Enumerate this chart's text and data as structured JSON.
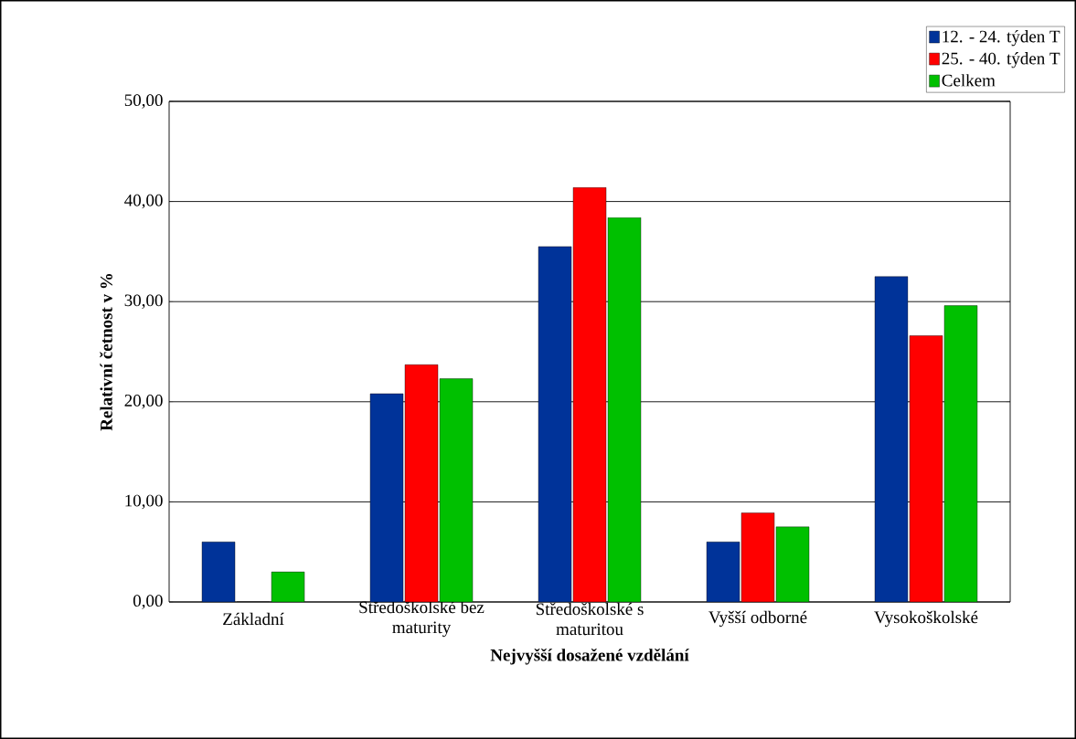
{
  "chart_data": {
    "type": "bar",
    "xlabel": "Nejvyšší dosažené vzdělání",
    "ylabel": "Relativní četnost v %",
    "categories": [
      "Základní",
      "Středoškolské bez maturity",
      "Středoškolské s maturitou",
      "Vyšší odborné",
      "Vysokoškolské"
    ],
    "series": [
      {
        "name": "12. - 24. týden T",
        "color": "#003399",
        "values": [
          6.0,
          20.8,
          35.5,
          6.0,
          32.5
        ]
      },
      {
        "name": "25. - 40. týden T",
        "color": "#ff0000",
        "values": [
          0.0,
          23.7,
          41.4,
          8.9,
          26.6
        ]
      },
      {
        "name": "Celkem",
        "color": "#00c000",
        "values": [
          3.0,
          22.3,
          38.4,
          7.5,
          29.6
        ]
      }
    ],
    "ylim": [
      0,
      50
    ],
    "yticks": [
      {
        "value": 0,
        "label": "0,00"
      },
      {
        "value": 10,
        "label": "10,00"
      },
      {
        "value": 20,
        "label": "20,00"
      },
      {
        "value": 30,
        "label": "30,00"
      },
      {
        "value": 40,
        "label": "40,00"
      },
      {
        "value": 50,
        "label": "50,00"
      }
    ],
    "grid": "y",
    "legend": "top right"
  }
}
